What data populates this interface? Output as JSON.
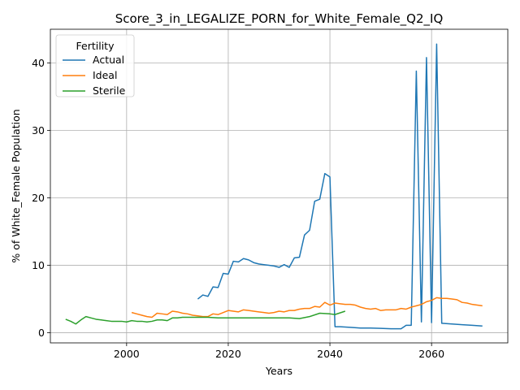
{
  "chart_data": {
    "type": "line",
    "title": "Score_3_in_LEGALIZE_PORN_for_White_Female_Q2_IQ",
    "xlabel": "Years",
    "ylabel": "% of White_Female Population",
    "xlim": [
      1985,
      2075
    ],
    "ylim": [
      -1.5,
      45
    ],
    "xticks": [
      2000,
      2020,
      2040,
      2060
    ],
    "yticks": [
      0,
      10,
      20,
      30,
      40
    ],
    "grid": true,
    "legend": {
      "title": "Fertility",
      "placement": "top-left"
    },
    "series": [
      {
        "name": "Actual",
        "color": "#1f77b4",
        "x": [
          2014,
          2015,
          2016,
          2017,
          2018,
          2019,
          2020,
          2021,
          2022,
          2023,
          2024,
          2025,
          2026,
          2027,
          2028,
          2029,
          2030,
          2031,
          2032,
          2033,
          2034,
          2035,
          2036,
          2037,
          2038,
          2039,
          2040,
          2041,
          2042,
          2044,
          2046,
          2048,
          2050,
          2052,
          2054,
          2055,
          2056,
          2057,
          2058,
          2059,
          2060,
          2061,
          2062,
          2064,
          2066,
          2068,
          2070
        ],
        "y": [
          5.0,
          5.6,
          5.4,
          6.8,
          6.7,
          8.8,
          8.7,
          10.6,
          10.5,
          11.0,
          10.8,
          10.4,
          10.2,
          10.1,
          10.0,
          9.9,
          9.7,
          10.1,
          9.7,
          11.1,
          11.2,
          14.5,
          15.2,
          19.5,
          19.8,
          23.6,
          23.1,
          0.9,
          0.9,
          0.8,
          0.7,
          0.7,
          0.65,
          0.6,
          0.6,
          1.1,
          1.1,
          38.8,
          1.6,
          40.8,
          1.5,
          42.8,
          1.4,
          1.3,
          1.2,
          1.1,
          1.0
        ]
      },
      {
        "name": "Ideal",
        "color": "#ff7f0e",
        "x": [
          2001,
          2002,
          2003,
          2004,
          2005,
          2006,
          2007,
          2008,
          2009,
          2010,
          2011,
          2012,
          2013,
          2014,
          2015,
          2016,
          2017,
          2018,
          2019,
          2020,
          2021,
          2022,
          2023,
          2024,
          2025,
          2026,
          2027,
          2028,
          2029,
          2030,
          2031,
          2032,
          2033,
          2034,
          2035,
          2036,
          2037,
          2038,
          2039,
          2040,
          2041,
          2042,
          2043,
          2044,
          2045,
          2046,
          2047,
          2048,
          2049,
          2050,
          2051,
          2052,
          2053,
          2054,
          2055,
          2056,
          2057,
          2058,
          2059,
          2060,
          2061,
          2062,
          2063,
          2064,
          2065,
          2066,
          2067,
          2068,
          2069,
          2070
        ],
        "y": [
          3.0,
          2.8,
          2.6,
          2.4,
          2.3,
          2.9,
          2.8,
          2.7,
          3.2,
          3.1,
          2.9,
          2.8,
          2.6,
          2.5,
          2.4,
          2.4,
          2.8,
          2.7,
          3.0,
          3.3,
          3.2,
          3.1,
          3.4,
          3.3,
          3.2,
          3.1,
          3.0,
          2.9,
          3.0,
          3.2,
          3.1,
          3.3,
          3.3,
          3.5,
          3.6,
          3.6,
          3.9,
          3.8,
          4.5,
          4.1,
          4.4,
          4.3,
          4.2,
          4.2,
          4.1,
          3.8,
          3.6,
          3.5,
          3.6,
          3.3,
          3.4,
          3.4,
          3.4,
          3.6,
          3.5,
          3.8,
          4.0,
          4.2,
          4.6,
          4.8,
          5.2,
          5.1,
          5.1,
          5.0,
          4.9,
          4.5,
          4.4,
          4.2,
          4.1,
          4.0
        ]
      },
      {
        "name": "Sterile",
        "color": "#2ca02c",
        "x": [
          1988,
          1989,
          1990,
          1991,
          1992,
          1993,
          1994,
          1995,
          1996,
          1997,
          1998,
          1999,
          2000,
          2001,
          2002,
          2003,
          2004,
          2005,
          2006,
          2007,
          2008,
          2009,
          2010,
          2011,
          2012,
          2013,
          2014,
          2015,
          2016,
          2018,
          2020,
          2022,
          2024,
          2026,
          2028,
          2030,
          2032,
          2034,
          2036,
          2038,
          2040,
          2041,
          2043
        ],
        "y": [
          2.0,
          1.7,
          1.3,
          1.9,
          2.4,
          2.2,
          2.0,
          1.9,
          1.8,
          1.7,
          1.7,
          1.7,
          1.6,
          1.8,
          1.7,
          1.7,
          1.6,
          1.7,
          1.9,
          1.9,
          1.8,
          2.2,
          2.2,
          2.3,
          2.3,
          2.3,
          2.3,
          2.3,
          2.3,
          2.2,
          2.2,
          2.2,
          2.2,
          2.2,
          2.2,
          2.2,
          2.2,
          2.1,
          2.4,
          2.9,
          2.8,
          2.7,
          3.2
        ]
      }
    ]
  }
}
